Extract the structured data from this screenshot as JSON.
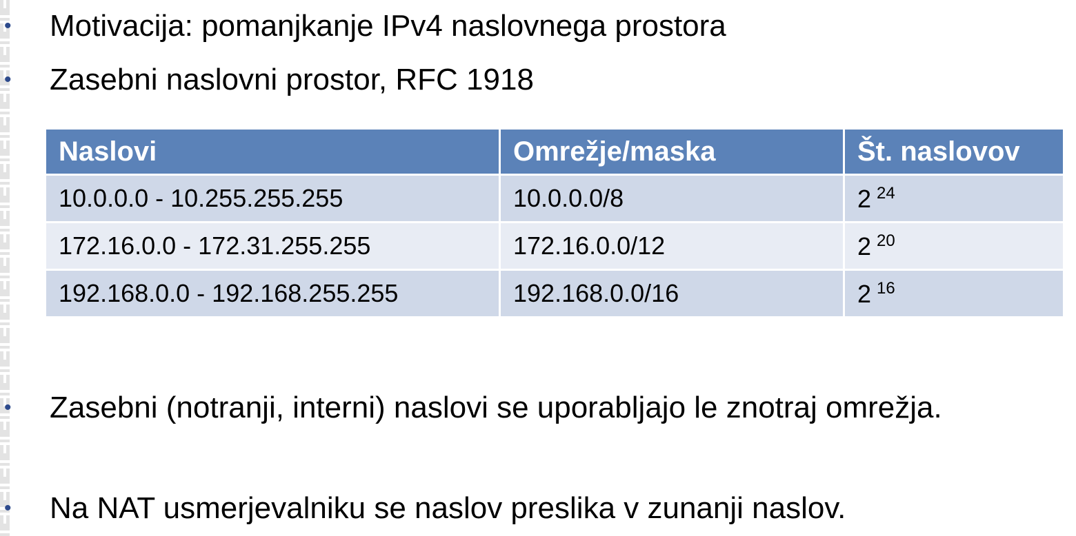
{
  "bullets_top": [
    "Motivacija: pomanjkanje IPv4 naslovnega prostora",
    "Zasebni naslovni prostor, RFC 1918"
  ],
  "table": {
    "headers": [
      "Naslovi",
      "Omrežje/maska",
      "Št. naslovov"
    ],
    "rows": [
      {
        "range": "10.0.0.0 - 10.255.255.255",
        "network": "10.0.0.0/8",
        "base": "2",
        "exp": "24"
      },
      {
        "range": "172.16.0.0 - 172.31.255.255",
        "network": "172.16.0.0/12",
        "base": "2",
        "exp": "20"
      },
      {
        "range": "192.168.0.0 - 192.168.255.255",
        "network": "192.168.0.0/16",
        "base": "2",
        "exp": "16"
      }
    ]
  },
  "bullets_bottom": [
    "Zasebni (notranji, interni) naslovi se uporabljajo le znotraj omrežja.",
    "Na NAT usmerjevalniku se naslov preslika v zunanji naslov."
  ],
  "colors": {
    "header_bg": "#5b82b8",
    "row_odd": "#cfd8e8",
    "row_even": "#e8ecf4",
    "bullet": "#2d4a8c"
  }
}
